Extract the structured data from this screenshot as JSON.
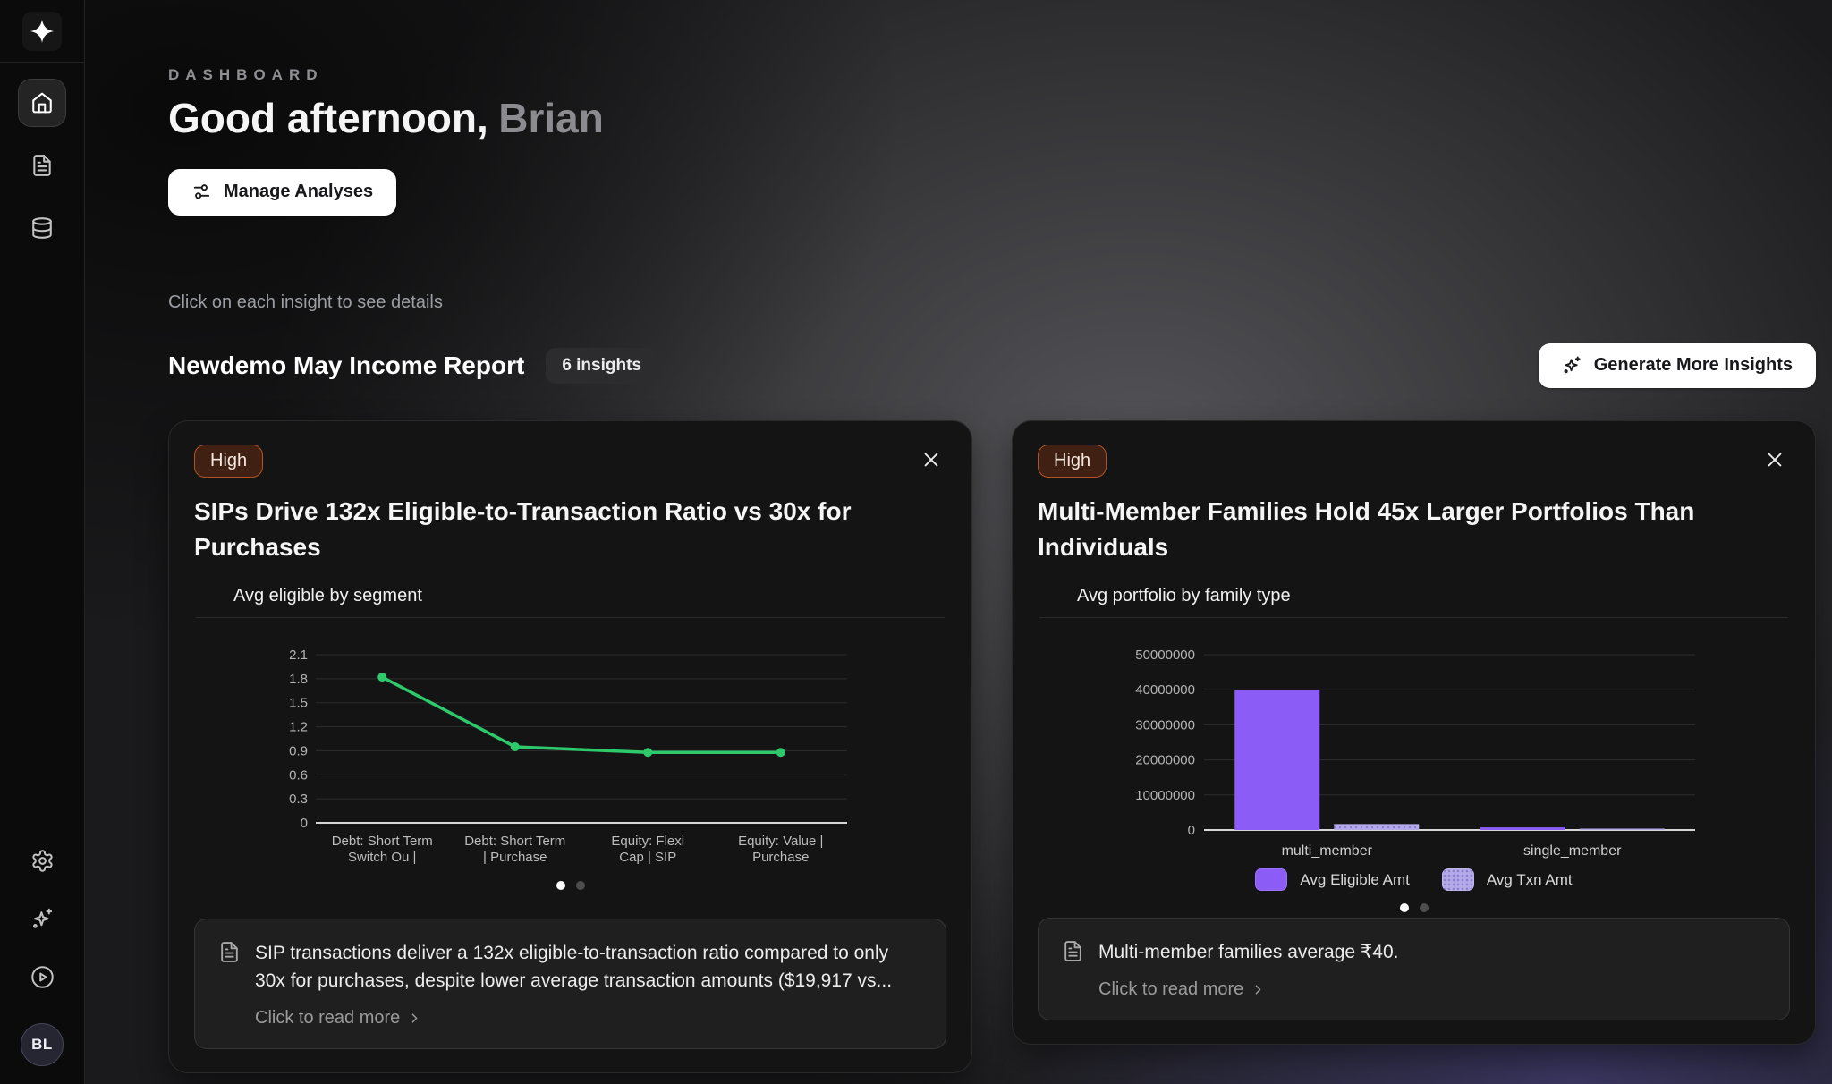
{
  "sidebar": {
    "logo": {
      "icon": "sparkle-logo-icon"
    },
    "nav": [
      {
        "id": "home",
        "icon": "home-icon",
        "active": true
      },
      {
        "id": "documents",
        "icon": "file-text-icon",
        "active": false
      },
      {
        "id": "database",
        "icon": "database-icon",
        "active": false
      }
    ],
    "footer": [
      {
        "id": "settings",
        "icon": "gear-icon"
      },
      {
        "id": "ai",
        "icon": "sparkles-plus-icon"
      },
      {
        "id": "tutorials",
        "icon": "play-circle-icon"
      }
    ],
    "avatar": {
      "initials": "BL"
    }
  },
  "header": {
    "eyebrow": "DASHBOARD",
    "greeting_prefix": "Good afternoon,",
    "greeting_name": "Brian",
    "manage_button": {
      "label": "Manage Analyses",
      "icon": "sliders-icon"
    }
  },
  "insights_section": {
    "hint": "Click on each insight to see details",
    "report_title": "Newdemo May Income Report",
    "insights_count_badge": "6 insights",
    "generate_button": {
      "label": "Generate More Insights",
      "icon": "sparkles-plus-icon"
    }
  },
  "cards": [
    {
      "priority_label": "High",
      "title": "SIPs Drive 132x Eligible-to-Transaction Ratio vs 30x for Purchases",
      "summary": "SIP transactions deliver a 132x eligible-to-transaction ratio compared to only 30x for purchases, despite lower average transaction amounts ($19,917 vs...",
      "read_more_label": "Click to read more",
      "close_icon": "close-icon",
      "pagination": {
        "count": 2,
        "active": 0
      }
    },
    {
      "priority_label": "High",
      "title": "Multi-Member Families Hold 45x Larger Portfolios Than Individuals",
      "summary": "Multi-member families average ₹40.",
      "read_more_label": "Click to read more",
      "close_icon": "close-icon",
      "pagination": {
        "count": 2,
        "active": 0
      }
    }
  ],
  "chart_data": [
    {
      "type": "line",
      "title": "Avg eligible by segment",
      "categories": [
        [
          "Debt: Short Term",
          "Switch Ou |"
        ],
        [
          "Debt: Short Term",
          "| Purchase"
        ],
        [
          "Equity: Flexi",
          "Cap | SIP"
        ],
        [
          "Equity: Value |",
          "Purchase"
        ]
      ],
      "values": [
        1.82,
        0.95,
        0.88,
        0.88
      ],
      "yticks": [
        0,
        0.3,
        0.6,
        0.9,
        1.2,
        1.5,
        1.8,
        2.1
      ],
      "ylim": [
        0,
        2.1
      ],
      "grid": true,
      "legend_position": "none",
      "line_color": "#2dc96b"
    },
    {
      "type": "bar",
      "title": "Avg portfolio by family type",
      "categories": [
        "multi_member",
        "single_member"
      ],
      "series": [
        {
          "name": "Avg Eligible Amt",
          "values": [
            40000000,
            750000
          ],
          "color": "#8b5cf6",
          "pattern": false
        },
        {
          "name": "Avg Txn Amt",
          "values": [
            1700000,
            120000
          ],
          "color": "#b5aae8",
          "pattern": true
        }
      ],
      "yticks": [
        0,
        10000000,
        20000000,
        30000000,
        40000000,
        50000000
      ],
      "ylim": [
        0,
        50000000
      ],
      "grid": true,
      "legend_position": "bottom"
    }
  ],
  "colors": {
    "priority_high_bg": "#3f2012",
    "priority_high_border": "#b05527",
    "priority_high_text": "#f6e8df",
    "accent_purple": "#8b5cf6",
    "accent_purple_light": "#b5aae8",
    "accent_green": "#2dc96b",
    "background_accent": "#6a60c6"
  }
}
